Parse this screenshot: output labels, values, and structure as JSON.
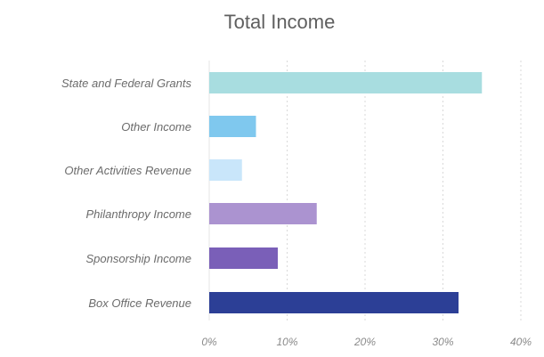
{
  "chart_data": {
    "type": "bar",
    "orientation": "horizontal",
    "title": "Total Income",
    "xlabel": "",
    "ylabel": "",
    "categories": [
      "State and Federal Grants",
      "Other Income",
      "Other Activities Revenue",
      "Philanthropy Income",
      "Sponsorship Income",
      "Box Office Revenue"
    ],
    "values": [
      35,
      6,
      4.2,
      13.8,
      8.8,
      32
    ],
    "unit": "%",
    "colors": [
      "#a8dde0",
      "#7fc8ee",
      "#c9e6fa",
      "#ab93d0",
      "#7a5fb8",
      "#2c3f96"
    ],
    "xlim": [
      0,
      40
    ],
    "ticks": [
      0,
      10,
      20,
      30,
      40
    ],
    "tick_labels": [
      "0%",
      "10%",
      "20%",
      "30%",
      "40%"
    ],
    "grid": true,
    "legend": "none"
  }
}
